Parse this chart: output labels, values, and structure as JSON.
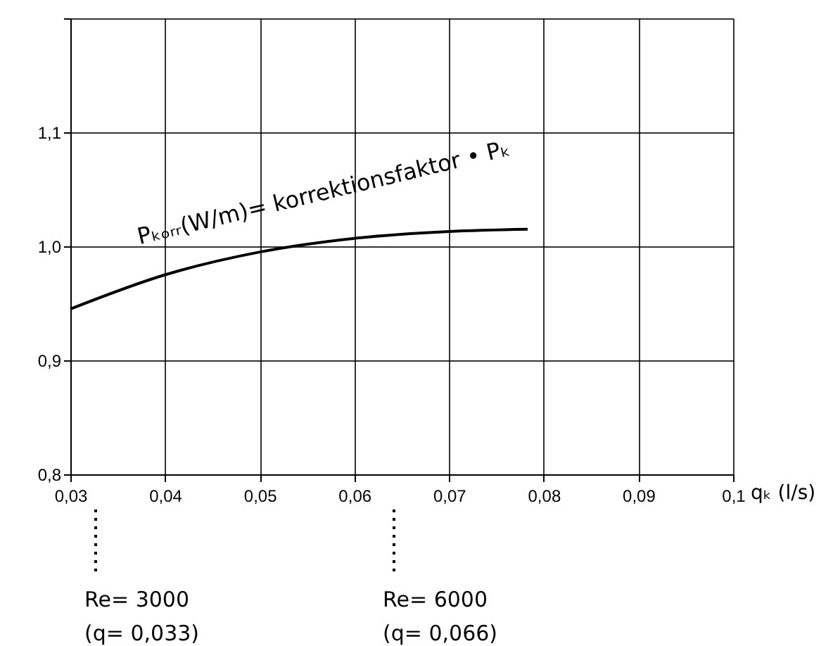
{
  "chart_data": {
    "type": "line",
    "xlabel": "qₖ (l/s)",
    "x": [
      0.03,
      0.04,
      0.05,
      0.06,
      0.07,
      0.0783
    ],
    "series": [
      {
        "color": "#000000",
        "values": [
          0.945,
          0.975,
          0.995,
          1.007,
          1.013,
          1.015
        ]
      }
    ],
    "xlim": [
      0.03,
      0.1
    ],
    "xticks": [
      {
        "value": 0.03,
        "label": "0,03"
      },
      {
        "value": 0.04,
        "label": "0,04"
      },
      {
        "value": 0.05,
        "label": "0,05"
      },
      {
        "value": 0.06,
        "label": "0,06"
      },
      {
        "value": 0.07,
        "label": "0,07"
      },
      {
        "value": 0.08,
        "label": "0,08"
      },
      {
        "value": 0.09,
        "label": "0,09"
      },
      {
        "value": 0.1,
        "label": "0,1"
      }
    ],
    "ylim": [
      0.8,
      1.2
    ],
    "yticks": [
      {
        "value": 0.8,
        "label": "0,8"
      },
      {
        "value": 0.9,
        "label": "0,9"
      },
      {
        "value": 1.0,
        "label": "1,0"
      },
      {
        "value": 1.1,
        "label": "1,1"
      },
      {
        "value": 1.2,
        "label": null
      }
    ],
    "grid": true,
    "marker": "none",
    "line_style": "solid",
    "annotations": [
      "Pₖₒᵣᵣ(W/m)= korrektionsfaktor • Pₖ",
      "Re= 3000\n(q= 0,033)",
      "Re= 6000\n(q= 0,066)"
    ]
  }
}
